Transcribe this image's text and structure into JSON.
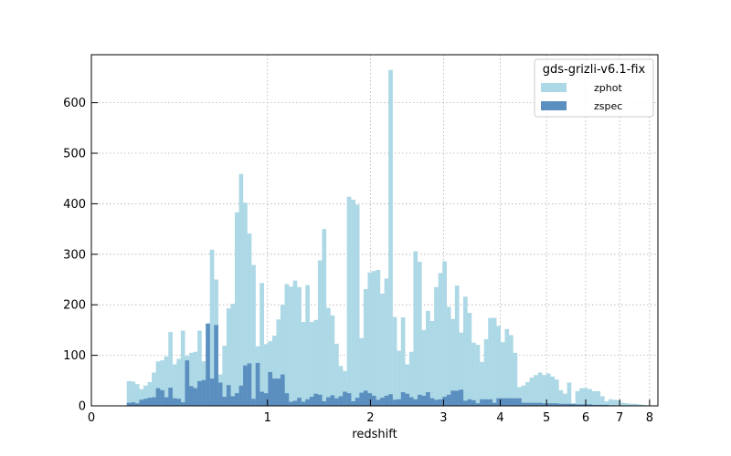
{
  "chart_data": {
    "type": "bar",
    "title": "",
    "xlabel": "redshift",
    "ylabel": "",
    "x_scale": "log(1+z)",
    "xlim": [
      0,
      8.3
    ],
    "ylim": [
      0,
      695
    ],
    "x_ticks": [
      0,
      1,
      2,
      3,
      4,
      5,
      6,
      7,
      8
    ],
    "y_ticks": [
      0,
      100,
      200,
      300,
      400,
      500,
      600
    ],
    "grid": true,
    "legend": {
      "title": "gds-grizli-v6.1-fix",
      "position": "top-right",
      "entries": [
        "zphot",
        "zspec"
      ]
    },
    "bins": {
      "start_log1pz": 0.0606,
      "width_log1pz": 0.0071,
      "count": 125
    },
    "series": [
      {
        "name": "zphot",
        "color": "#add8e6",
        "values": [
          49,
          48,
          43,
          33,
          40,
          47,
          66,
          88,
          90,
          98,
          146,
          82,
          93,
          149,
          99,
          105,
          107,
          149,
          88,
          116,
          309,
          250,
          62,
          119,
          193,
          202,
          383,
          459,
          402,
          341,
          279,
          118,
          243,
          122,
          128,
          139,
          171,
          200,
          241,
          236,
          248,
          235,
          166,
          239,
          166,
          170,
          288,
          350,
          194,
          179,
          123,
          79,
          69,
          414,
          408,
          398,
          134,
          231,
          264,
          267,
          269,
          222,
          252,
          665,
          176,
          109,
          175,
          82,
          107,
          306,
          285,
          150,
          188,
          168,
          235,
          263,
          286,
          196,
          172,
          238,
          145,
          216,
          184,
          125,
          121,
          87,
          132,
          174,
          174,
          158,
          126,
          152,
          140,
          105,
          37,
          40,
          47,
          56,
          61,
          66,
          61,
          64,
          58,
          52,
          31,
          24,
          46,
          5,
          29,
          35,
          35,
          33,
          29,
          29,
          19,
          9,
          13,
          12,
          11,
          6,
          5,
          4,
          4,
          3,
          2
        ]
      },
      {
        "name": "zspec",
        "color": "#5b8fbf",
        "values": [
          6,
          7,
          5,
          12,
          14,
          16,
          17,
          35,
          31,
          17,
          36,
          15,
          14,
          7,
          90,
          39,
          35,
          49,
          51,
          163,
          54,
          160,
          46,
          18,
          41,
          19,
          25,
          40,
          80,
          84,
          14,
          85,
          28,
          25,
          67,
          54,
          54,
          62,
          25,
          8,
          10,
          16,
          8,
          13,
          18,
          24,
          22,
          9,
          17,
          21,
          15,
          19,
          28,
          25,
          9,
          16,
          26,
          30,
          25,
          20,
          12,
          16,
          20,
          23,
          12,
          13,
          27,
          24,
          17,
          13,
          22,
          20,
          27,
          15,
          12,
          13,
          18,
          22,
          30,
          30,
          32,
          10,
          13,
          11,
          5,
          13,
          13,
          13,
          6,
          15,
          15,
          15,
          15,
          15,
          15,
          6,
          6,
          6,
          6,
          6,
          5,
          5,
          5,
          5,
          4,
          4,
          4,
          4,
          3,
          3,
          3,
          3,
          2,
          2,
          2,
          2,
          1,
          1,
          1,
          1,
          1,
          1,
          1,
          0,
          0
        ]
      }
    ]
  }
}
